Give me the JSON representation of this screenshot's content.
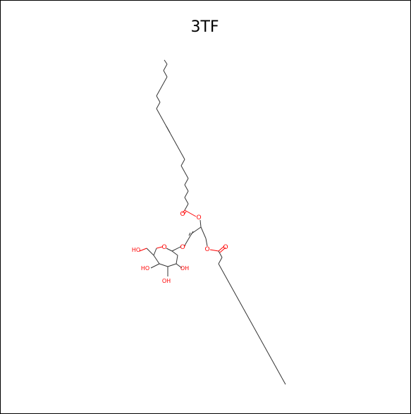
{
  "title": "3TF",
  "colors": {
    "bond": "#333333",
    "heteroatom": "#ff0000",
    "frame": "#000000",
    "background": "#ffffff"
  },
  "atom_labels": {
    "ester_o_upper": "O",
    "carbonyl_o_upper": "O",
    "ester_o_lower": "O",
    "carbonyl_o_lower": "O",
    "glycosidic_o": "O",
    "ring_o": "O",
    "ch2oh": "HO",
    "oh_c4": "HO",
    "oh_c3": "OH",
    "oh_c2": "OH"
  }
}
